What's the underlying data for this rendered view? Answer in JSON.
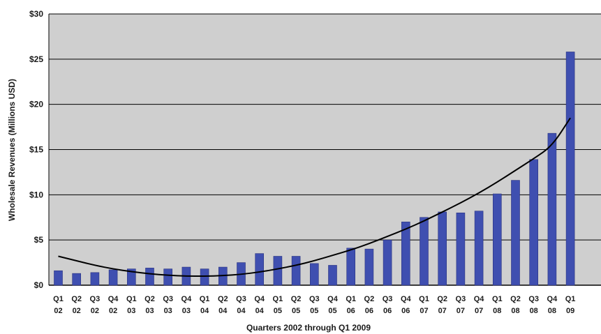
{
  "chart_data": {
    "type": "bar",
    "title": "",
    "xlabel": "Quarters 2002 through Q1 2009",
    "ylabel": "Wholesale Revenues (Millions USD)",
    "ylim": [
      0,
      30
    ],
    "y_ticks": [
      0,
      5,
      10,
      15,
      20,
      25,
      30
    ],
    "y_tick_labels": [
      "$0",
      "$5",
      "$10",
      "$15",
      "$20",
      "$25",
      "$30"
    ],
    "grid": true,
    "legend": "none",
    "categories": [
      {
        "q": "Q1",
        "y": "02"
      },
      {
        "q": "Q2",
        "y": "02"
      },
      {
        "q": "Q3",
        "y": "02"
      },
      {
        "q": "Q4",
        "y": "02"
      },
      {
        "q": "Q1",
        "y": "03"
      },
      {
        "q": "Q2",
        "y": "03"
      },
      {
        "q": "Q3",
        "y": "03"
      },
      {
        "q": "Q4",
        "y": "03"
      },
      {
        "q": "Q1",
        "y": "04"
      },
      {
        "q": "Q2",
        "y": "04"
      },
      {
        "q": "Q3",
        "y": "04"
      },
      {
        "q": "Q4",
        "y": "04"
      },
      {
        "q": "Q1",
        "y": "05"
      },
      {
        "q": "Q2",
        "y": "05"
      },
      {
        "q": "Q3",
        "y": "05"
      },
      {
        "q": "Q4",
        "y": "05"
      },
      {
        "q": "Q1",
        "y": "06"
      },
      {
        "q": "Q2",
        "y": "06"
      },
      {
        "q": "Q3",
        "y": "06"
      },
      {
        "q": "Q4",
        "y": "06"
      },
      {
        "q": "Q1",
        "y": "07"
      },
      {
        "q": "Q2",
        "y": "07"
      },
      {
        "q": "Q3",
        "y": "07"
      },
      {
        "q": "Q4",
        "y": "07"
      },
      {
        "q": "Q1",
        "y": "08"
      },
      {
        "q": "Q2",
        "y": "08"
      },
      {
        "q": "Q3",
        "y": "08"
      },
      {
        "q": "Q4",
        "y": "08"
      },
      {
        "q": "Q1",
        "y": "09"
      }
    ],
    "values": [
      1.6,
      1.3,
      1.4,
      1.7,
      1.8,
      1.9,
      1.8,
      2.0,
      1.8,
      2.0,
      2.5,
      3.5,
      3.2,
      3.2,
      2.4,
      2.2,
      4.1,
      4.0,
      5.0,
      7.0,
      7.5,
      8.1,
      8.0,
      8.2,
      10.1,
      11.6,
      13.9,
      16.8,
      25.8
    ],
    "trendline": [
      3.2,
      2.7,
      2.2,
      1.8,
      1.5,
      1.25,
      1.1,
      1.0,
      1.0,
      1.05,
      1.2,
      1.45,
      1.8,
      2.2,
      2.7,
      3.3,
      3.9,
      4.6,
      5.4,
      6.2,
      7.1,
      8.1,
      9.1,
      10.2,
      11.4,
      12.7,
      14.0,
      15.4,
      18.5
    ],
    "colors": {
      "bar": "#3f4fb0",
      "bar_edge": "#2a3380",
      "plot_background": "#cfcfcf",
      "grid": "#000000",
      "trend": "#000000"
    }
  }
}
